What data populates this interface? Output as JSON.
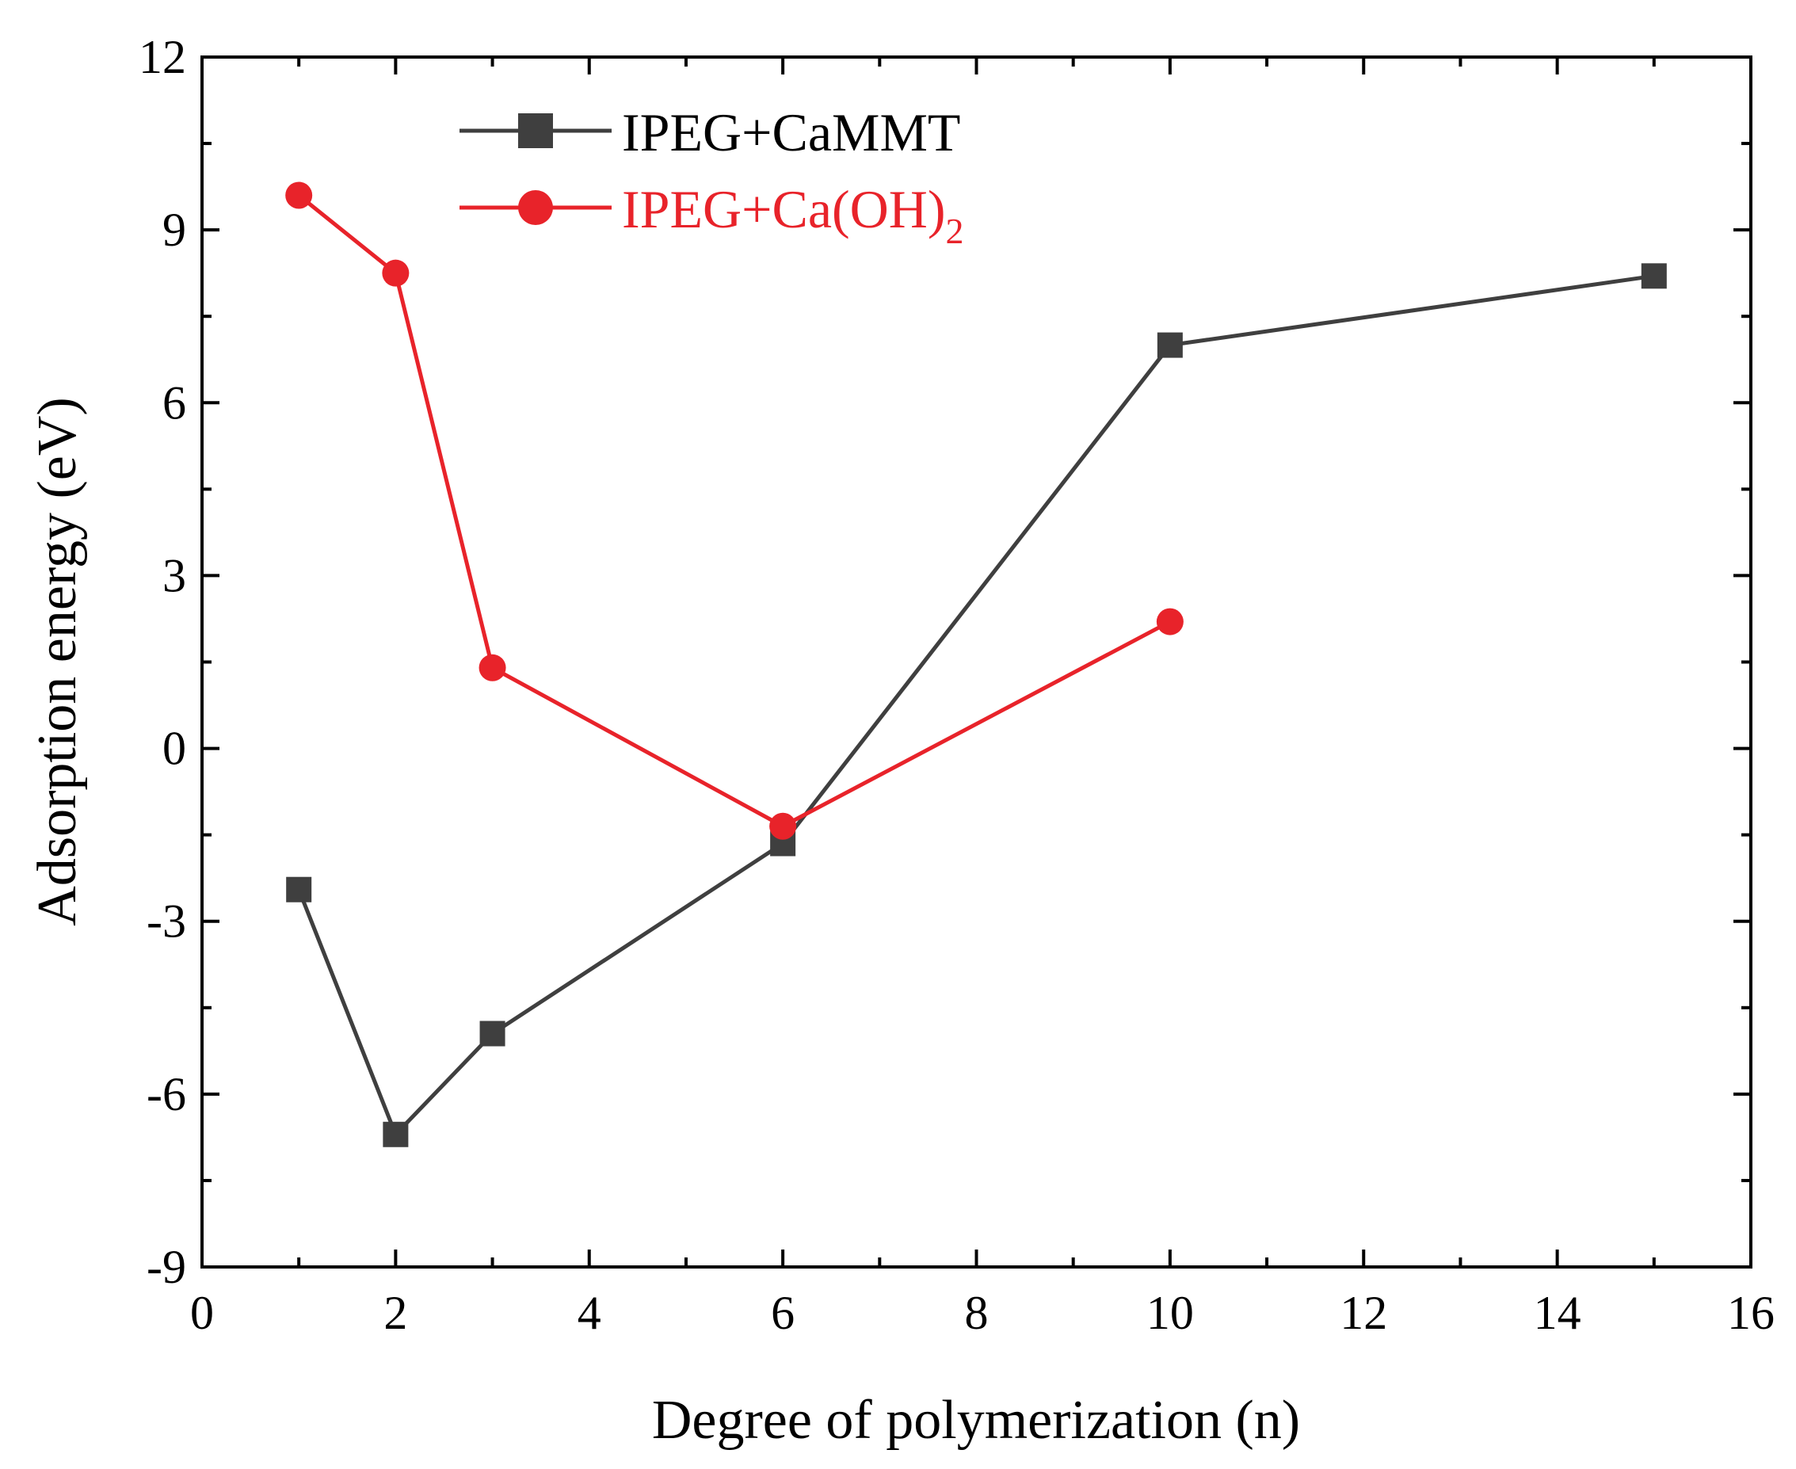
{
  "chart_data": {
    "type": "line",
    "title": "",
    "xlabel": "Degree of polymerization (n)",
    "ylabel": "Adsorption energy (eV)",
    "xlim": [
      0,
      16
    ],
    "ylim": [
      -9,
      12
    ],
    "xticks": [
      "0",
      "2",
      "4",
      "6",
      "8",
      "10",
      "12",
      "14",
      "16"
    ],
    "yticks": [
      "-9",
      "-6",
      "-3",
      "0",
      "3",
      "6",
      "9",
      "12"
    ],
    "x_tick_values": [
      0,
      2,
      4,
      6,
      8,
      10,
      12,
      14,
      16
    ],
    "y_tick_values": [
      -9,
      -6,
      -3,
      0,
      3,
      6,
      9,
      12
    ],
    "legend_position": "top-left",
    "series": [
      {
        "name": "IPEG+CaMMT",
        "label_main": "IPEG+CaMMT",
        "label_sub": "",
        "color": "#3f3f3f",
        "marker": "square",
        "x": [
          1,
          2,
          3,
          6,
          10,
          15
        ],
        "y": [
          -2.45,
          -6.7,
          -4.95,
          -1.65,
          7.0,
          8.2
        ]
      },
      {
        "name": "IPEG+Ca(OH)2",
        "label_main": "IPEG+Ca(OH)",
        "label_sub": "2",
        "color": "#e8232a",
        "marker": "circle",
        "x": [
          1,
          2,
          3,
          6,
          10
        ],
        "y": [
          9.6,
          8.25,
          1.4,
          -1.35,
          2.2
        ]
      }
    ]
  }
}
